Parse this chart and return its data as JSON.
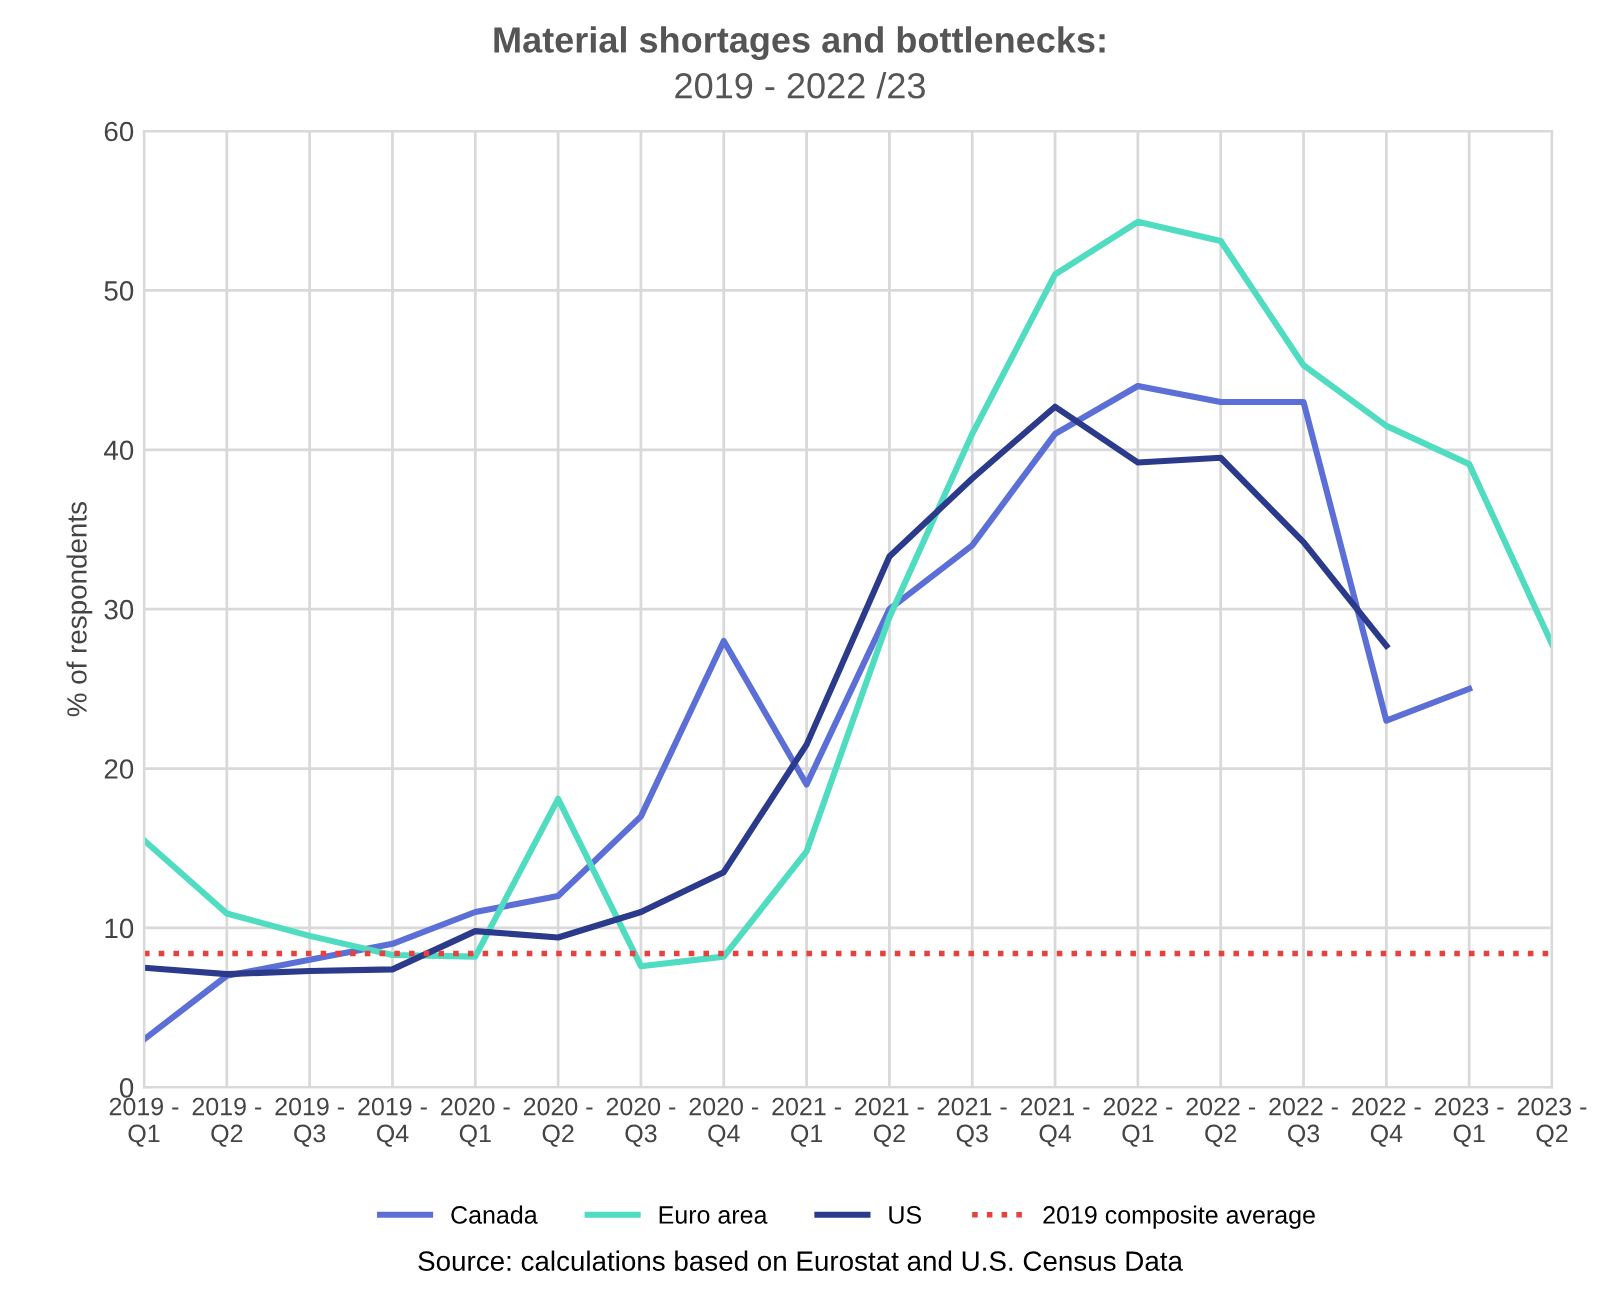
{
  "chart_data": {
    "type": "line",
    "title": "Material shortages and bottlenecks:",
    "subtitle": "2019 - 2022 /23",
    "ylabel": "% of respondents",
    "categories": [
      "2019 -\nQ1",
      "2019 -\nQ2",
      "2019 -\nQ3",
      "2019 -\nQ4",
      "2020 -\nQ1",
      "2020 -\nQ2",
      "2020 -\nQ3",
      "2020 -\nQ4",
      "2021 -\nQ1",
      "2021 -\nQ2",
      "2021 -\nQ3",
      "2021 -\nQ4",
      "2022 -\nQ1",
      "2022 -\nQ2",
      "2022 -\nQ3",
      "2022 -\nQ4",
      "2023 -\nQ1",
      "2023 -\nQ2"
    ],
    "series": [
      {
        "name": "Canada",
        "color": "#5b6fd6",
        "values": [
          3,
          7,
          8,
          9,
          11,
          12,
          17,
          28,
          19,
          30,
          34,
          41,
          44,
          43,
          43,
          23,
          25,
          null
        ]
      },
      {
        "name": "Euro area",
        "color": "#4fdcc0",
        "values": [
          15.5,
          10.9,
          9.5,
          8.3,
          8.2,
          18.1,
          7.6,
          8.2,
          14.8,
          29.5,
          41,
          51,
          54.3,
          53.1,
          45.3,
          41.5,
          39.1,
          27.8
        ]
      },
      {
        "name": "US",
        "color": "#2b3a8a",
        "values": [
          7.5,
          7.1,
          7.3,
          7.4,
          9.8,
          9.4,
          11,
          13.5,
          21.5,
          33.3,
          38.2,
          42.7,
          39.2,
          39.5,
          34.2,
          27.7,
          null,
          null
        ]
      }
    ],
    "ref_lines": [
      {
        "axis": "y",
        "value": 8.4,
        "label": "2019 composite average",
        "color": "#e8413c",
        "line_style": "dotted"
      }
    ],
    "ylim": [
      0,
      60
    ],
    "yticks": [
      0,
      10,
      20,
      30,
      40,
      50,
      60
    ],
    "grid": true,
    "legend": "bottom",
    "marker": "none",
    "line_style": "solid",
    "annotations": [
      "Source: calculations based on Eurostat and U.S. Census Data"
    ]
  }
}
